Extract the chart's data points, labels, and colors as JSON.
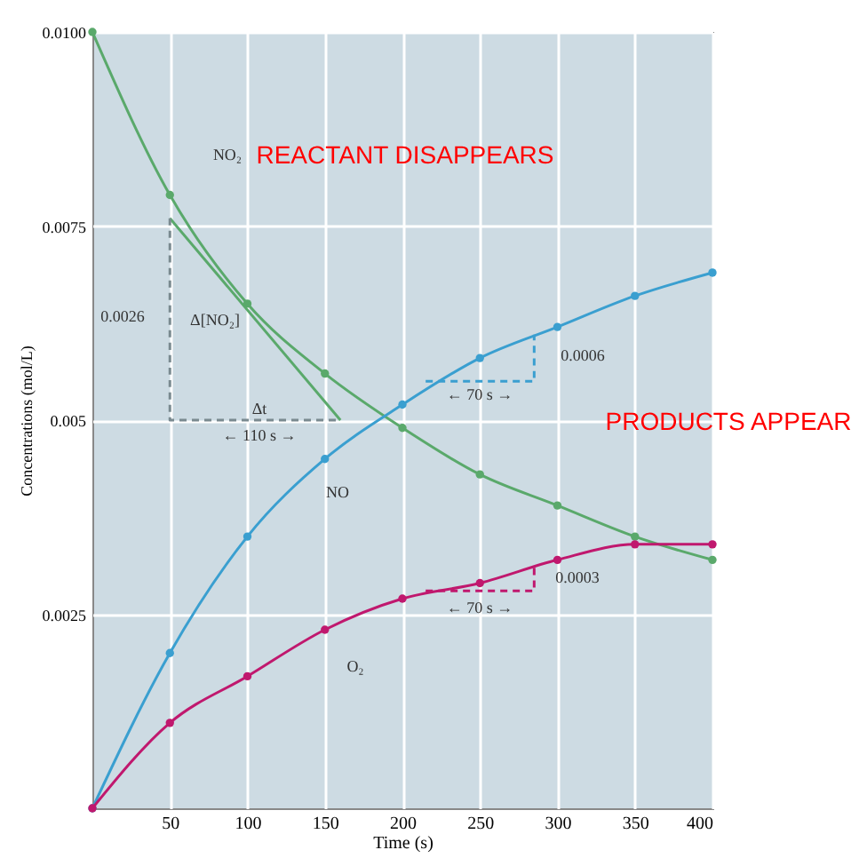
{
  "chart_data": {
    "type": "line",
    "xlabel": "Time (s)",
    "ylabel": "Concentrations (mol/L)",
    "x": [
      0,
      50,
      100,
      150,
      200,
      250,
      300,
      350,
      400
    ],
    "xlim": [
      0,
      400
    ],
    "xticks": [
      50,
      100,
      150,
      200,
      250,
      300,
      350,
      400
    ],
    "ylim": [
      0,
      0.01
    ],
    "yticks": [
      0.0025,
      0.005,
      0.0075,
      {
        "value": 0.01,
        "label": "0.0100"
      }
    ],
    "grid": true,
    "series": [
      {
        "color": "#5aa96b",
        "marker": "circle",
        "values": [
          0.01,
          0.0079,
          0.0065,
          0.0056,
          0.0049,
          0.0043,
          0.0039,
          0.0035,
          0.0032
        ]
      },
      {
        "color": "#3a9fd0",
        "marker": "circle",
        "values": [
          0,
          0.002,
          0.0035,
          0.0045,
          0.0052,
          0.0058,
          0.0062,
          0.0066,
          0.0069
        ]
      },
      {
        "color": "#c0186e",
        "marker": "circle",
        "values": [
          0,
          0.0011,
          0.0017,
          0.0023,
          0.0027,
          0.0029,
          0.0032,
          0.0034,
          0.0034
        ]
      },
      {
        "color": "#5aa96b",
        "marker": "none",
        "x": [
          50,
          160
        ],
        "values": [
          0.0076,
          0.005
        ]
      },
      {
        "color": "#7a8a90",
        "marker": "none",
        "line_style": "dashed",
        "x": [
          50,
          50,
          160
        ],
        "values": [
          0.0076,
          0.005,
          0.005
        ]
      },
      {
        "color": "#3a9fd0",
        "marker": "none",
        "line_style": "dashed",
        "x": [
          215,
          285,
          285
        ],
        "values": [
          0.0055,
          0.0055,
          0.0061
        ]
      },
      {
        "color": "#c0186e",
        "marker": "none",
        "line_style": "dashed",
        "x": [
          215,
          285,
          285
        ],
        "values": [
          0.0028,
          0.0028,
          0.0031
        ]
      }
    ],
    "annotations": [
      "REACTANT DISAPPEARS",
      "PRODUCTS APPEAR",
      "NO₂",
      "0.0026",
      "Δ[NO₂]",
      "Δt",
      "← 110 s →",
      "NO",
      "O₂",
      "0.0006",
      "← 70 s →",
      "0.0003",
      "← 70 s →"
    ]
  }
}
